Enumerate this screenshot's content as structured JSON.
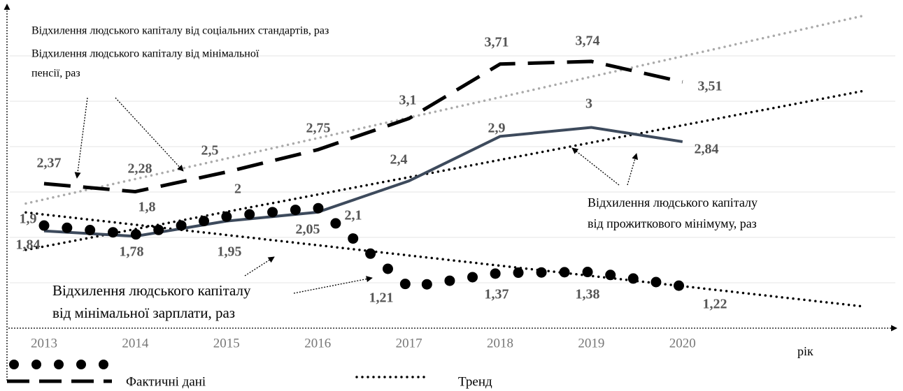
{
  "chart_data": {
    "type": "line",
    "categories": [
      "2013",
      "2014",
      "2015",
      "2016",
      "2017",
      "2018",
      "2019",
      "2020"
    ],
    "series": [
      {
        "name": "Відхилення людського капіталу від соціальних стандартів, раз",
        "color": "#000000",
        "style": "dashed",
        "trend_color": "#aaaaaa",
        "values": [
          2.37,
          2.28,
          2.5,
          2.75,
          3.1,
          3.71,
          3.74,
          3.51
        ],
        "value_labels": [
          "2,37",
          "2,28",
          "2,5",
          "2,75",
          "3,1",
          "3,71",
          "3,74",
          "3,51"
        ]
      },
      {
        "name": "Відхилення людського капіталу від прожиткового мінімуму, раз",
        "color": "#3d4a5c",
        "style": "solid",
        "trend_color": "#000000",
        "values": [
          1.84,
          1.78,
          1.95,
          2.05,
          2.4,
          2.9,
          3,
          2.84
        ],
        "value_labels": [
          "1,84",
          "1,78",
          "1,95",
          "2,05",
          "2,4",
          "2,9",
          "3",
          "2,84"
        ]
      },
      {
        "name": "Відхилення людського капіталу від мінімальної зарплати, раз",
        "color": "#000000",
        "style": "dots",
        "trend_color": "#000000",
        "values": [
          1.9,
          1.8,
          2,
          2.1,
          1.21,
          1.37,
          1.38,
          1.22
        ],
        "value_labels": [
          "1,9",
          "1,8",
          "2",
          "2,1",
          "1,21",
          "1,37",
          "1,38",
          "1,22"
        ]
      }
    ],
    "ylim": [
      0.75,
      4.35
    ],
    "xlabel": "рік",
    "annotations": {
      "social": [
        "Відхилення людського капіталу від соціальних стандартів, раз"
      ],
      "pension": [
        "Відхилення людського капіталу від мінімальної",
        "пенсії, раз"
      ],
      "subsistence": [
        "Відхилення людського капіталу",
        "від прожиткового мінімуму, раз"
      ],
      "wage": [
        "Відхилення людського капіталу",
        "від мінімальної зарплати, раз"
      ]
    },
    "legend": {
      "actual": "Фактичні дані",
      "trend": "Тренд"
    }
  }
}
